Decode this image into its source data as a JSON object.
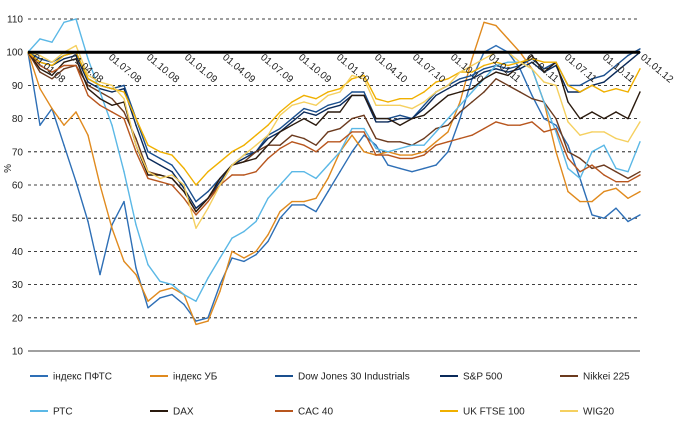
{
  "chart_data": {
    "type": "line",
    "ylabel": "%",
    "ylim": [
      10,
      110
    ],
    "yticks": [
      "10",
      "20",
      "30",
      "40",
      "50",
      "60",
      "70",
      "80",
      "90",
      "100",
      "110"
    ],
    "grid": true,
    "legend_position": "bottom",
    "x_tick_labels": [
      "01.01.08",
      "01.04.08",
      "01.07.08",
      "01.10.08",
      "01.01.09",
      "01.04.09",
      "01.07.09",
      "01.10.09",
      "01.01.10",
      "01.04.10",
      "01.07.10",
      "01.10.10",
      "01.01.11",
      "01.04.11",
      "01.07.11",
      "01.10.11",
      "01.01.12"
    ],
    "reference_line": 100,
    "series": [
      {
        "name": "індекс ПФТС",
        "color": "#2e6fb6",
        "values": [
          100,
          78,
          83,
          72,
          61,
          49,
          33,
          48,
          55,
          35,
          23,
          26,
          27,
          24,
          19,
          20,
          30,
          38,
          37,
          39,
          43,
          50,
          54,
          54,
          52,
          58,
          64,
          70,
          75,
          72,
          66,
          65,
          64,
          65,
          66,
          70,
          80,
          92,
          100,
          102,
          100,
          95,
          87,
          80,
          78,
          72,
          62,
          51,
          50,
          53,
          49,
          51
        ]
      },
      {
        "name": "індекс УБ",
        "color": "#e08a1e",
        "values": [
          100,
          89,
          83,
          78,
          82,
          75,
          60,
          47,
          37,
          33,
          25,
          28,
          29,
          27,
          18,
          19,
          28,
          40,
          38,
          40,
          45,
          52,
          55,
          55,
          56,
          62,
          70,
          75,
          70,
          69,
          70,
          69,
          69,
          70,
          73,
          76,
          85,
          98,
          109,
          108,
          104,
          100,
          95,
          85,
          70,
          58,
          55,
          55,
          58,
          59,
          56,
          58
        ]
      },
      {
        "name": "Dow Jones 30 Industrials",
        "color": "#1a4f8e",
        "values": [
          100,
          98,
          97,
          99,
          100,
          92,
          90,
          89,
          90,
          80,
          70,
          68,
          66,
          61,
          55,
          58,
          62,
          66,
          69,
          70,
          75,
          77,
          80,
          83,
          82,
          84,
          85,
          88,
          88,
          80,
          80,
          81,
          80,
          84,
          88,
          90,
          92,
          93,
          95,
          96,
          95,
          96,
          98,
          95,
          97,
          90,
          90,
          92,
          93,
          96,
          99,
          101
        ]
      },
      {
        "name": "S&P 500",
        "color": "#0a2a5a",
        "values": [
          100,
          97,
          96,
          98,
          99,
          91,
          89,
          88,
          89,
          78,
          68,
          66,
          64,
          59,
          53,
          56,
          61,
          66,
          68,
          70,
          74,
          76,
          79,
          82,
          81,
          83,
          84,
          87,
          87,
          79,
          79,
          80,
          80,
          83,
          87,
          89,
          91,
          92,
          94,
          95,
          94,
          95,
          97,
          94,
          96,
          88,
          88,
          90,
          91,
          94,
          97,
          100
        ]
      },
      {
        "name": "Nikkei 225",
        "color": "#6b3a1e",
        "values": [
          100,
          94,
          92,
          95,
          96,
          90,
          88,
          86,
          82,
          74,
          64,
          63,
          62,
          58,
          52,
          56,
          60,
          66,
          67,
          70,
          72,
          72,
          75,
          74,
          72,
          76,
          77,
          80,
          81,
          74,
          73,
          73,
          72,
          74,
          77,
          78,
          82,
          85,
          88,
          92,
          90,
          88,
          86,
          85,
          80,
          70,
          68,
          65,
          66,
          64,
          62,
          64
        ]
      },
      {
        "name": "РТС",
        "color": "#5bb8e6",
        "values": [
          100,
          104,
          103,
          109,
          110,
          98,
          88,
          78,
          64,
          48,
          36,
          31,
          30,
          27,
          25,
          32,
          38,
          44,
          46,
          49,
          56,
          60,
          64,
          64,
          62,
          66,
          70,
          77,
          77,
          71,
          70,
          71,
          72,
          72,
          76,
          80,
          84,
          88,
          92,
          96,
          97,
          97,
          95,
          85,
          76,
          65,
          62,
          70,
          72,
          65,
          64,
          73
        ]
      },
      {
        "name": "DAX",
        "color": "#2a1a0e",
        "values": [
          100,
          95,
          93,
          97,
          98,
          89,
          86,
          84,
          85,
          72,
          63,
          63,
          62,
          58,
          52,
          56,
          62,
          66,
          67,
          68,
          72,
          76,
          78,
          80,
          78,
          82,
          82,
          87,
          87,
          80,
          80,
          78,
          80,
          81,
          84,
          87,
          88,
          89,
          92,
          94,
          93,
          96,
          99,
          94,
          97,
          85,
          80,
          82,
          80,
          82,
          80,
          88
        ]
      },
      {
        "name": "CAC 40",
        "color": "#b8561e",
        "values": [
          100,
          96,
          94,
          96,
          96,
          87,
          84,
          82,
          80,
          70,
          62,
          61,
          60,
          56,
          51,
          55,
          60,
          63,
          63,
          64,
          68,
          71,
          73,
          72,
          70,
          73,
          73,
          76,
          76,
          69,
          69,
          68,
          68,
          69,
          72,
          73,
          74,
          75,
          77,
          79,
          78,
          78,
          79,
          76,
          77,
          68,
          64,
          66,
          63,
          61,
          61,
          63
        ]
      },
      {
        "name": "UK FTSE 100",
        "color": "#f0b000",
        "values": [
          100,
          97,
          96,
          99,
          100,
          92,
          90,
          89,
          88,
          80,
          72,
          70,
          69,
          65,
          60,
          64,
          67,
          70,
          72,
          75,
          78,
          82,
          85,
          87,
          86,
          88,
          89,
          92,
          93,
          86,
          85,
          86,
          86,
          88,
          91,
          92,
          94,
          94,
          96,
          97,
          96,
          97,
          98,
          97,
          97,
          90,
          88,
          90,
          88,
          89,
          88,
          95
        ]
      },
      {
        "name": "WIG20",
        "color": "#f5d060",
        "values": [
          100,
          99,
          97,
          100,
          102,
          93,
          91,
          90,
          86,
          72,
          64,
          62,
          63,
          60,
          47,
          53,
          60,
          66,
          69,
          72,
          75,
          81,
          84,
          85,
          84,
          87,
          88,
          93,
          92,
          84,
          84,
          84,
          83,
          85,
          88,
          90,
          94,
          96,
          98,
          100,
          100,
          97,
          95,
          91,
          90,
          79,
          75,
          76,
          76,
          74,
          73,
          79
        ]
      }
    ]
  }
}
